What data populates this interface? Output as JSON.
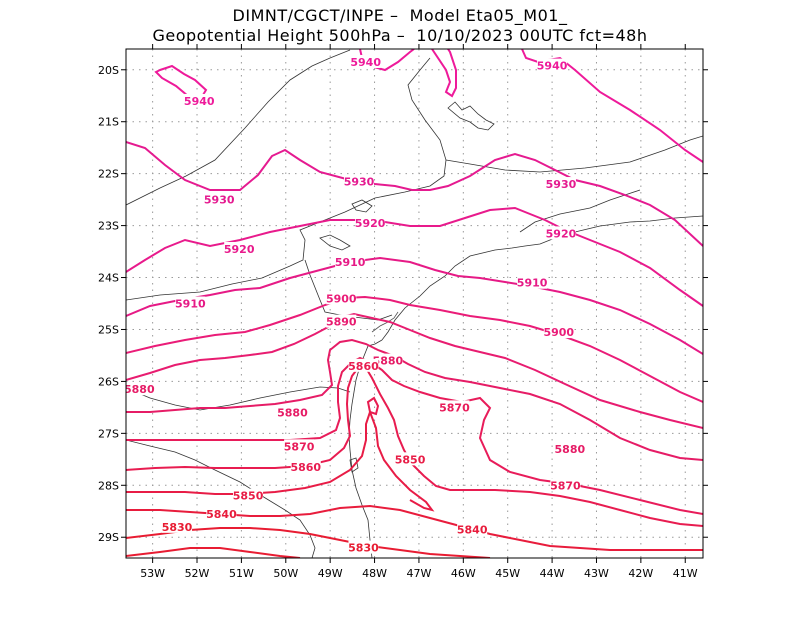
{
  "header": {
    "line1": "DIMNT/CGCT/INPE –  Model Eta05_M01_",
    "line2": "Geopotential Height 500hPa –  10/10/2023 00UTC fct=48h"
  },
  "map": {
    "lon_range": [
      -53.6,
      -40.6
    ],
    "lat_range": [
      -29.4,
      -19.6
    ],
    "lat_ticks": [
      {
        "value": -20,
        "label": "20S"
      },
      {
        "value": -21,
        "label": "21S"
      },
      {
        "value": -22,
        "label": "22S"
      },
      {
        "value": -23,
        "label": "23S"
      },
      {
        "value": -24,
        "label": "24S"
      },
      {
        "value": -25,
        "label": "25S"
      },
      {
        "value": -26,
        "label": "26S"
      },
      {
        "value": -27,
        "label": "27S"
      },
      {
        "value": -28,
        "label": "28S"
      },
      {
        "value": -29,
        "label": "29S"
      }
    ],
    "lon_ticks": [
      {
        "value": -53,
        "label": "53W"
      },
      {
        "value": -52,
        "label": "52W"
      },
      {
        "value": -51,
        "label": "51W"
      },
      {
        "value": -50,
        "label": "50W"
      },
      {
        "value": -49,
        "label": "49W"
      },
      {
        "value": -48,
        "label": "48W"
      },
      {
        "value": -47,
        "label": "47W"
      },
      {
        "value": -46,
        "label": "46W"
      },
      {
        "value": -45,
        "label": "45W"
      },
      {
        "value": -44,
        "label": "44W"
      },
      {
        "value": -43,
        "label": "43W"
      },
      {
        "value": -42,
        "label": "42W"
      },
      {
        "value": -41,
        "label": "41W"
      }
    ],
    "grid": true,
    "contour_colors": {
      "5940": "#ee1a9a",
      "5930": "#e51a90",
      "5920": "#e81a8c",
      "5910": "#e61a86",
      "5900": "#ea1c78",
      "5890": "#e81c70",
      "5880": "#e61c66",
      "5870": "#e81c5a",
      "5860": "#e81c50",
      "5850": "#e81c46",
      "5840": "#e81c3c",
      "5830": "#e81c32"
    },
    "contour_labels": [
      {
        "text": "5940",
        "lon": -48.2,
        "lat": -19.85
      },
      {
        "text": "5940",
        "lon": -44.0,
        "lat": -19.92
      },
      {
        "text": "5940",
        "lon": -51.95,
        "lat": -20.6
      },
      {
        "text": "5930",
        "lon": -51.5,
        "lat": -22.5
      },
      {
        "text": "5930",
        "lon": -48.35,
        "lat": -22.15
      },
      {
        "text": "5930",
        "lon": -43.8,
        "lat": -22.2
      },
      {
        "text": "5920",
        "lon": -51.05,
        "lat": -23.45
      },
      {
        "text": "5920",
        "lon": -48.1,
        "lat": -22.95
      },
      {
        "text": "5920",
        "lon": -43.8,
        "lat": -23.15
      },
      {
        "text": "5910",
        "lon": -48.55,
        "lat": -23.7
      },
      {
        "text": "5910",
        "lon": -52.15,
        "lat": -24.5
      },
      {
        "text": "5910",
        "lon": -44.45,
        "lat": -24.1
      },
      {
        "text": "5900",
        "lon": -48.75,
        "lat": -24.4
      },
      {
        "text": "5900",
        "lon": -43.85,
        "lat": -25.05
      },
      {
        "text": "5890",
        "lon": -48.75,
        "lat": -24.85
      },
      {
        "text": "5880",
        "lon": -47.7,
        "lat": -25.6
      },
      {
        "text": "5880",
        "lon": -53.3,
        "lat": -26.15
      },
      {
        "text": "5880",
        "lon": -49.85,
        "lat": -26.6
      },
      {
        "text": "5880",
        "lon": -43.6,
        "lat": -27.3
      },
      {
        "text": "5860",
        "lon": -48.25,
        "lat": -25.7
      },
      {
        "text": "5870",
        "lon": -46.2,
        "lat": -26.5
      },
      {
        "text": "5870",
        "lon": -49.7,
        "lat": -27.25
      },
      {
        "text": "5870",
        "lon": -43.7,
        "lat": -28.0
      },
      {
        "text": "5860",
        "lon": -49.55,
        "lat": -27.65
      },
      {
        "text": "5850",
        "lon": -47.2,
        "lat": -27.5
      },
      {
        "text": "5850",
        "lon": -50.85,
        "lat": -28.2
      },
      {
        "text": "5840",
        "lon": -51.45,
        "lat": -28.55
      },
      {
        "text": "5840",
        "lon": -45.8,
        "lat": -28.85
      },
      {
        "text": "5830",
        "lon": -52.45,
        "lat": -28.8
      },
      {
        "text": "5830",
        "lon": -48.25,
        "lat": -29.2
      }
    ]
  }
}
